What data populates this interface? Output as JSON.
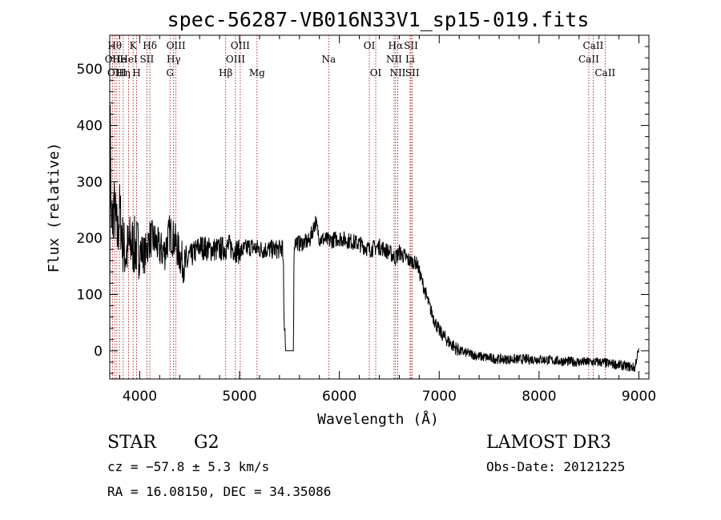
{
  "chart_data": {
    "type": "line",
    "title": "spec-56287-VB016N33V1_sp15-019.fits",
    "xlabel": "Wavelength (Å)",
    "ylabel": "Flux (relative)",
    "xlim": [
      3700,
      9100
    ],
    "ylim": [
      -50,
      560
    ],
    "xticks": [
      4000,
      5000,
      6000,
      7000,
      8000,
      9000
    ],
    "yticks": [
      0,
      100,
      200,
      300,
      400,
      500
    ],
    "spectrum_anchors": {
      "x": [
        3700,
        3705,
        3712,
        3720,
        3740,
        3760,
        3780,
        3800,
        3830,
        3860,
        3900,
        3950,
        4000,
        4050,
        4100,
        4150,
        4200,
        4250,
        4300,
        4350,
        4400,
        4450,
        4500,
        4600,
        4700,
        4800,
        4900,
        5000,
        5100,
        5200,
        5300,
        5400,
        5430,
        5440,
        5445,
        5455,
        5460,
        5540,
        5545,
        5550,
        5560,
        5600,
        5700,
        5760,
        5800,
        5900,
        6000,
        6100,
        6200,
        6300,
        6400,
        6500,
        6560,
        6600,
        6700,
        6780,
        6800,
        6850,
        6900,
        6950,
        7000,
        7100,
        7200,
        7300,
        7400,
        7600,
        7800,
        8000,
        8200,
        8400,
        8600,
        8800,
        8960,
        8980,
        9000
      ],
      "y": [
        0,
        470,
        250,
        200,
        260,
        230,
        200,
        250,
        190,
        170,
        190,
        185,
        180,
        170,
        200,
        195,
        180,
        175,
        210,
        195,
        170,
        150,
        165,
        185,
        180,
        180,
        185,
        175,
        185,
        180,
        180,
        180,
        185,
        140,
        50,
        40,
        0,
        0,
        150,
        190,
        195,
        190,
        195,
        230,
        200,
        195,
        200,
        195,
        190,
        180,
        185,
        175,
        165,
        175,
        160,
        155,
        140,
        110,
        80,
        55,
        35,
        15,
        0,
        -5,
        -10,
        -15,
        -15,
        -15,
        -18,
        -20,
        -20,
        -25,
        -30,
        -10,
        0
      ]
    },
    "lines": [
      {
        "x": 3727,
        "label": "OII",
        "row": 2
      },
      {
        "x": 3750,
        "label": "Hθ",
        "row": 1
      },
      {
        "x": 3771,
        "label": "OIII",
        "row": 3
      },
      {
        "x": 3797,
        "label": "He",
        "row": 2
      },
      {
        "x": 3835,
        "label": "Hη",
        "row": 3
      },
      {
        "x": 3889,
        "label": "HeI",
        "row": 2
      },
      {
        "x": 3934,
        "label": "K",
        "row": 1
      },
      {
        "x": 3969,
        "label": "H",
        "row": 3
      },
      {
        "x": 4072,
        "label": "SII",
        "row": 2
      },
      {
        "x": 4102,
        "label": "Hδ",
        "row": 1
      },
      {
        "x": 4304,
        "label": "G",
        "row": 3
      },
      {
        "x": 4340,
        "label": "Hγ",
        "row": 2
      },
      {
        "x": 4363,
        "label": "OIII",
        "row": 1
      },
      {
        "x": 4861,
        "label": "Hβ",
        "row": 3
      },
      {
        "x": 4959,
        "label": "OIII",
        "row": 2
      },
      {
        "x": 5007,
        "label": "OIII",
        "row": 1
      },
      {
        "x": 5175,
        "label": "Mg",
        "row": 3
      },
      {
        "x": 5893,
        "label": "Na",
        "row": 2
      },
      {
        "x": 6300,
        "label": "OI",
        "row": 1
      },
      {
        "x": 6364,
        "label": "OI",
        "row": 3
      },
      {
        "x": 6548,
        "label": "NII",
        "row": 2
      },
      {
        "x": 6563,
        "label": "Hα",
        "row": 1
      },
      {
        "x": 6584,
        "label": "NII",
        "row": 3
      },
      {
        "x": 6708,
        "label": "Li",
        "row": 2
      },
      {
        "x": 6717,
        "label": "SII",
        "row": 1
      },
      {
        "x": 6731,
        "label": "SII",
        "row": 3
      },
      {
        "x": 8498,
        "label": "CaII",
        "row": 2
      },
      {
        "x": 8542,
        "label": "CaII",
        "row": 1
      },
      {
        "x": 8662,
        "label": "CaII",
        "row": 3
      }
    ]
  },
  "info": {
    "class": "STAR",
    "subclass": "G2",
    "survey": "LAMOST DR3",
    "cz": "cz = −57.8 ± 5.3 km/s",
    "obs_date": "Obs-Date: 20121225",
    "coords": "RA =  16.08150, DEC =  34.35086"
  }
}
